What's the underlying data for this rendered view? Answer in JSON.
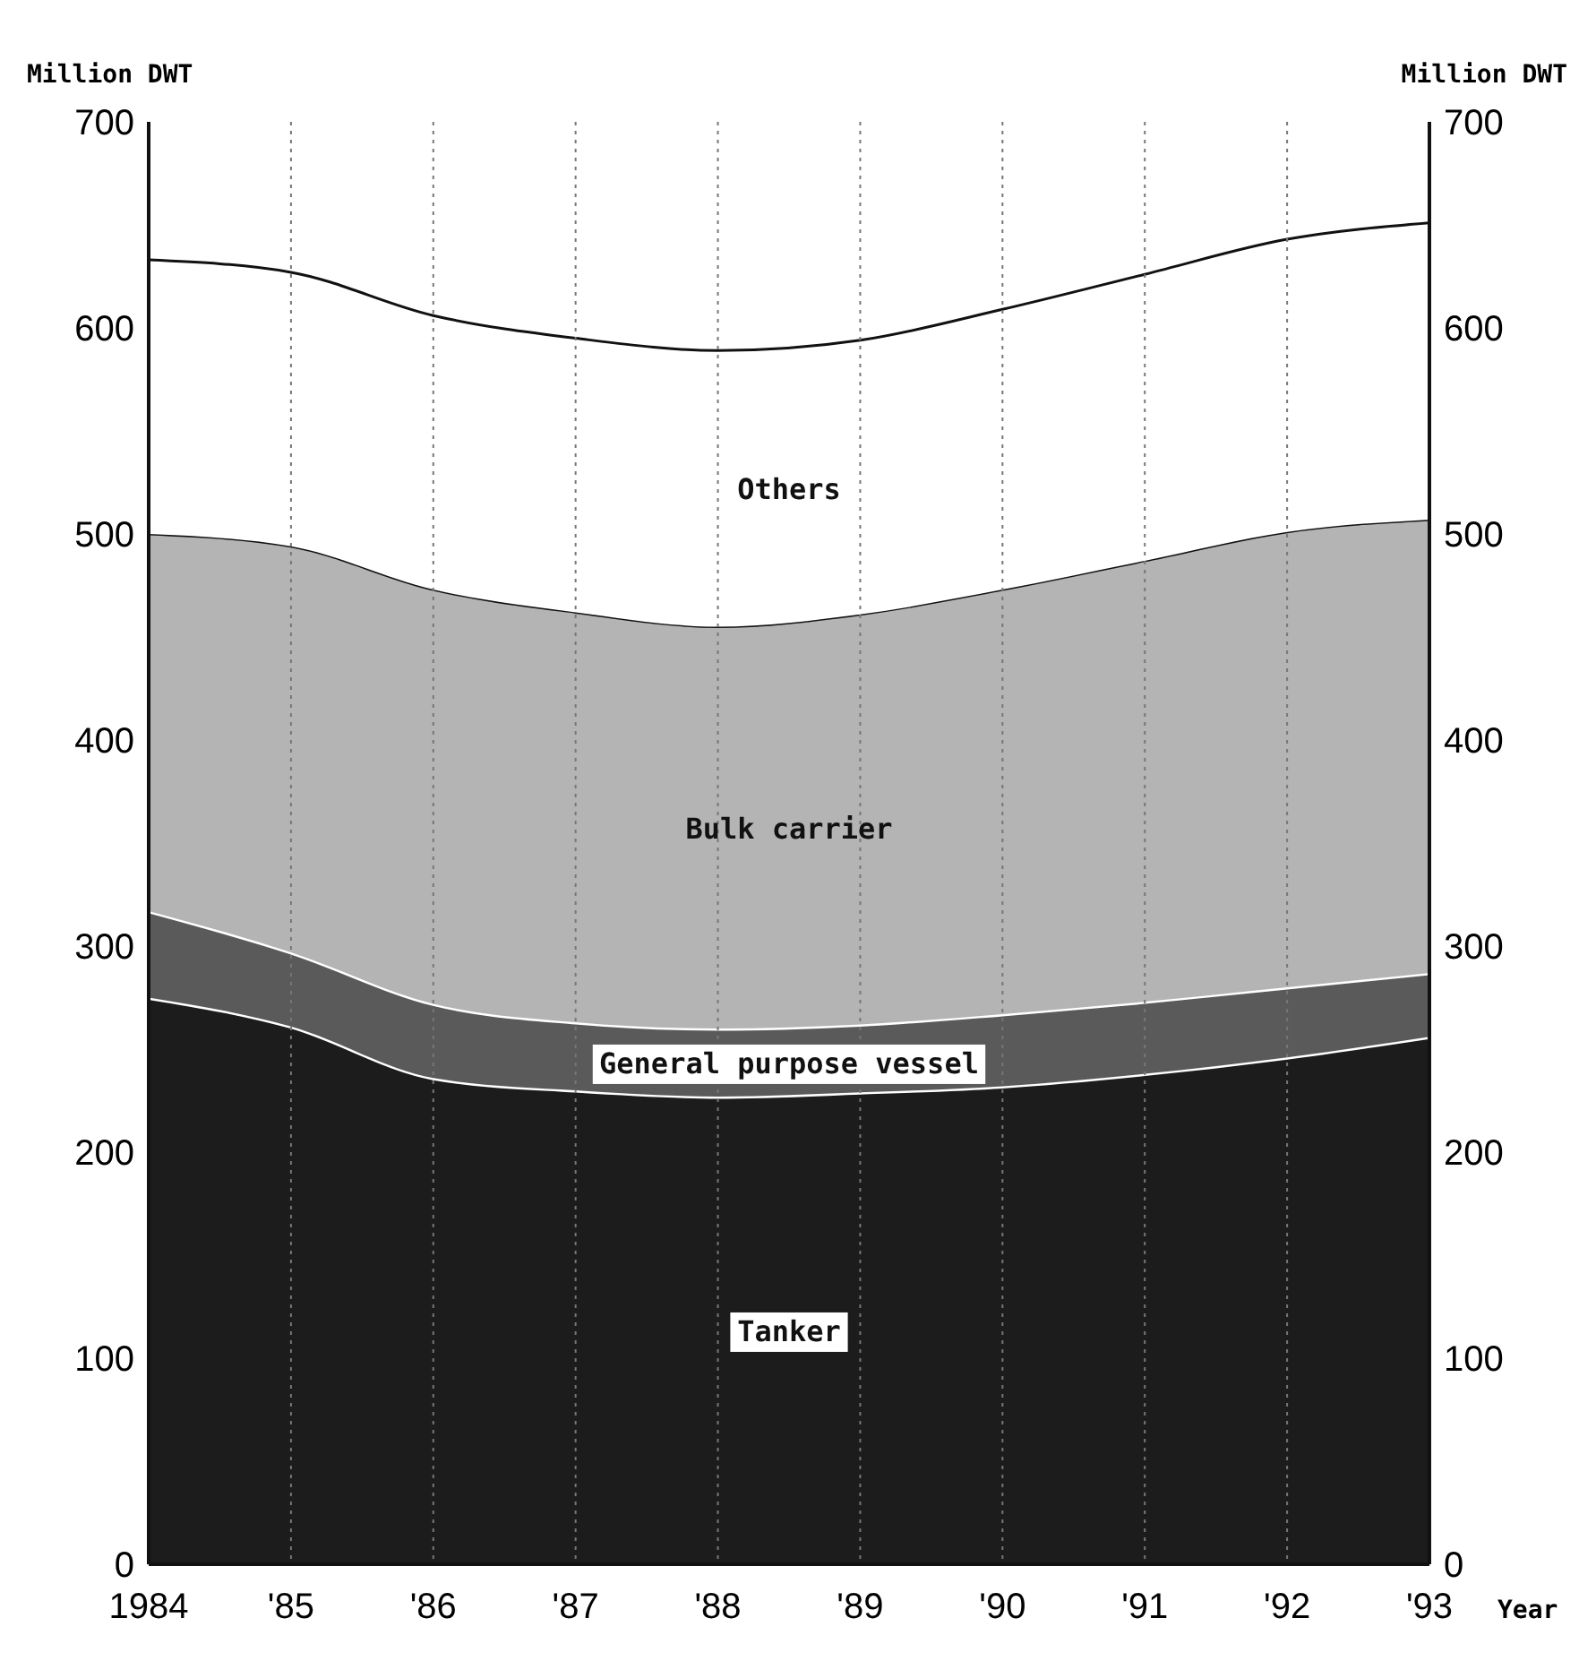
{
  "chart_data": {
    "type": "area",
    "stacked": true,
    "x": [
      1984,
      1985,
      1986,
      1987,
      1988,
      1989,
      1990,
      1991,
      1992,
      1993
    ],
    "series": [
      {
        "name": "Tanker",
        "color": "#1c1c1c",
        "values": [
          275,
          261,
          236,
          230,
          227,
          229,
          232,
          238,
          246,
          256
        ]
      },
      {
        "name": "General purpose vessel",
        "color": "#5a5a5a",
        "values": [
          42,
          36,
          36,
          33,
          33,
          33,
          35,
          35,
          34,
          31
        ]
      },
      {
        "name": "Bulk carrier",
        "color": "#b4b4b4",
        "values": [
          183,
          197,
          201,
          199,
          195,
          199,
          206,
          214,
          221,
          220
        ]
      },
      {
        "name": "Others",
        "color": "#ffffff",
        "values": [
          133,
          133,
          133,
          133,
          134,
          133,
          136,
          139,
          142,
          144
        ]
      }
    ],
    "xlim": [
      1984,
      1993
    ],
    "xticks": [
      {
        "value": 1984,
        "label": "1984"
      },
      {
        "value": 1985,
        "label": "'85"
      },
      {
        "value": 1986,
        "label": "'86"
      },
      {
        "value": 1987,
        "label": "'87"
      },
      {
        "value": 1988,
        "label": "'88"
      },
      {
        "value": 1989,
        "label": "'89"
      },
      {
        "value": 1990,
        "label": "'90"
      },
      {
        "value": 1991,
        "label": "'91"
      },
      {
        "value": 1992,
        "label": "'92"
      },
      {
        "value": 1993,
        "label": "'93"
      }
    ],
    "ylim": [
      0,
      700
    ],
    "yticks": [
      0,
      100,
      200,
      300,
      400,
      500,
      600,
      700
    ],
    "y2lim": [
      0,
      700
    ],
    "y2ticks": [
      0,
      100,
      200,
      300,
      400,
      500,
      600,
      700
    ],
    "xlabel": "Year",
    "ylabel": "Million DWT",
    "y2label": "Million DWT",
    "grid": "x"
  }
}
